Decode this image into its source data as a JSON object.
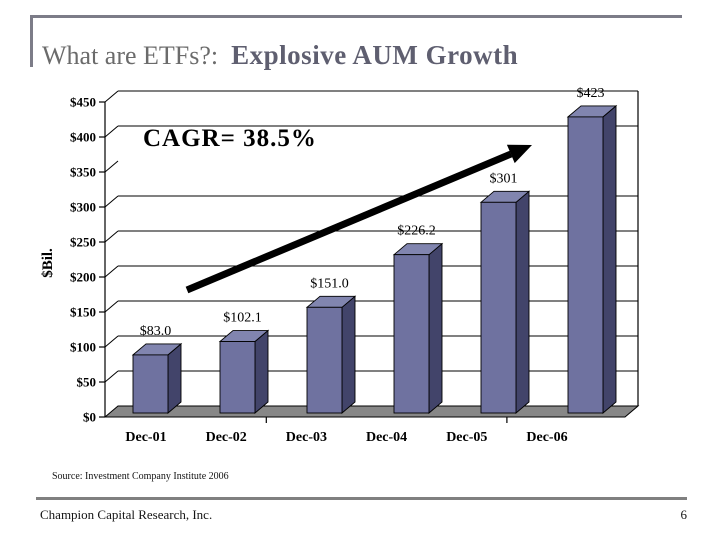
{
  "slide": {
    "title_prefix": "What are ETFs?:",
    "title_main": "Explosive AUM Growth",
    "source": "Source: Investment Company Institute 2006",
    "footer": "Champion Capital Research, Inc.",
    "page_number": "6"
  },
  "chart_data": {
    "type": "bar",
    "title": "Explosive AUM Growth",
    "categories": [
      "Dec-01",
      "Dec-02",
      "Dec-03",
      "Dec-04",
      "Dec-05",
      "Dec-06"
    ],
    "values": [
      83.0,
      102.1,
      151.0,
      226.2,
      301,
      423
    ],
    "value_labels": [
      "$83.0",
      "$102.1",
      "$151.0",
      "$226.2",
      "$301",
      "$423"
    ],
    "annotation": "CAGR= 38.5%",
    "ylabel": "$Bil.",
    "xlabel": "",
    "ylim": [
      0,
      450
    ],
    "ytick_step": 50,
    "ytick_labels": [
      "$0",
      "$50",
      "$100",
      "$150",
      "$200",
      "$250",
      "$300",
      "$350",
      "$400",
      "$450"
    ],
    "grid": true,
    "missing_gridline_at": 350,
    "legend": "none",
    "style": "3d-column",
    "trend_arrow": true,
    "colors": {
      "bar_front": "#6f72a0",
      "bar_side": "#42446a",
      "bar_top": "#8185af",
      "floor": "#878787",
      "line": "#000000",
      "arrow": "#000000"
    }
  }
}
